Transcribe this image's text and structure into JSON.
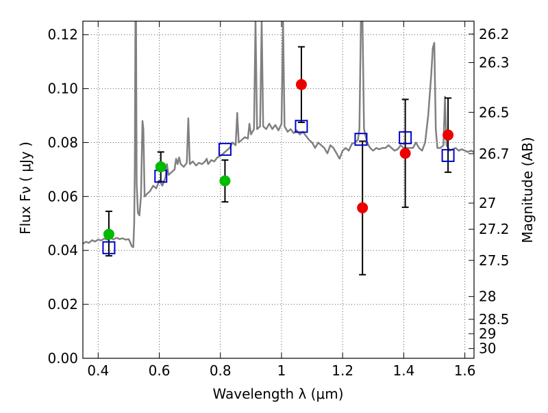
{
  "chart_data": {
    "type": "scatter",
    "title": "",
    "xlabel": "Wavelength  λ (μm)",
    "ylabel": "Flux  Fν  ( μJy )",
    "y2label": "Magnitude (AB)",
    "xlim": [
      0.35,
      1.63
    ],
    "ylim": [
      0.0,
      0.125
    ],
    "grid": true,
    "x_ticks": [
      0.4,
      0.6,
      0.8,
      1.0,
      1.2,
      1.4,
      1.6
    ],
    "x_tick_labels": [
      "0.4",
      "0.6",
      "0.8",
      "1",
      "1.2",
      "1.4",
      "1.6"
    ],
    "y_ticks": [
      0.0,
      0.02,
      0.04,
      0.06,
      0.08,
      0.1,
      0.12
    ],
    "y_tick_labels": [
      "0.00",
      "0.02",
      "0.04",
      "0.06",
      "0.08",
      "0.10",
      "0.12"
    ],
    "y2_tick_labels": [
      "26.2",
      "26.3",
      "26.5",
      "26.7",
      "27",
      "27.2",
      "27.5",
      "28",
      "28.5",
      "29",
      "30"
    ],
    "colors": {
      "model": "#808080",
      "green": "#00bb00",
      "red": "#ee0000",
      "box": "#0000cc",
      "error": "#000000"
    },
    "series": [
      {
        "marker": "line",
        "color": "#808080",
        "points": [
          [
            0.35,
            0.0425
          ],
          [
            0.36,
            0.0432
          ],
          [
            0.37,
            0.0428
          ],
          [
            0.38,
            0.0438
          ],
          [
            0.39,
            0.0433
          ],
          [
            0.4,
            0.044
          ],
          [
            0.41,
            0.0437
          ],
          [
            0.42,
            0.0444
          ],
          [
            0.43,
            0.044
          ],
          [
            0.44,
            0.0446
          ],
          [
            0.45,
            0.0441
          ],
          [
            0.46,
            0.0447
          ],
          [
            0.47,
            0.0442
          ],
          [
            0.48,
            0.0445
          ],
          [
            0.49,
            0.044
          ],
          [
            0.5,
            0.0442
          ],
          [
            0.505,
            0.043
          ],
          [
            0.51,
            0.0415
          ],
          [
            0.515,
            0.0412
          ],
          [
            0.518,
            0.05
          ],
          [
            0.52,
            0.07
          ],
          [
            0.522,
            0.125
          ],
          [
            0.524,
            0.125
          ],
          [
            0.526,
            0.065
          ],
          [
            0.53,
            0.054
          ],
          [
            0.535,
            0.053
          ],
          [
            0.54,
            0.06
          ],
          [
            0.545,
            0.088
          ],
          [
            0.548,
            0.085
          ],
          [
            0.552,
            0.06
          ],
          [
            0.56,
            0.061
          ],
          [
            0.57,
            0.062
          ],
          [
            0.58,
            0.064
          ],
          [
            0.59,
            0.063
          ],
          [
            0.6,
            0.066
          ],
          [
            0.61,
            0.064
          ],
          [
            0.62,
            0.067
          ],
          [
            0.625,
            0.072
          ],
          [
            0.63,
            0.068
          ],
          [
            0.64,
            0.069
          ],
          [
            0.65,
            0.07
          ],
          [
            0.655,
            0.074
          ],
          [
            0.66,
            0.072
          ],
          [
            0.665,
            0.0745
          ],
          [
            0.67,
            0.072
          ],
          [
            0.68,
            0.071
          ],
          [
            0.69,
            0.0725
          ],
          [
            0.695,
            0.089
          ],
          [
            0.7,
            0.072
          ],
          [
            0.71,
            0.073
          ],
          [
            0.72,
            0.0715
          ],
          [
            0.73,
            0.0725
          ],
          [
            0.74,
            0.072
          ],
          [
            0.75,
            0.073
          ],
          [
            0.755,
            0.074
          ],
          [
            0.76,
            0.072
          ],
          [
            0.77,
            0.0735
          ],
          [
            0.78,
            0.073
          ],
          [
            0.79,
            0.0745
          ],
          [
            0.8,
            0.075
          ],
          [
            0.81,
            0.076
          ],
          [
            0.82,
            0.077
          ],
          [
            0.83,
            0.078
          ],
          [
            0.84,
            0.08
          ],
          [
            0.85,
            0.079
          ],
          [
            0.855,
            0.091
          ],
          [
            0.86,
            0.08
          ],
          [
            0.87,
            0.081
          ],
          [
            0.88,
            0.082
          ],
          [
            0.89,
            0.0815
          ],
          [
            0.895,
            0.087
          ],
          [
            0.9,
            0.083
          ],
          [
            0.91,
            0.085
          ],
          [
            0.915,
            0.125
          ],
          [
            0.92,
            0.085
          ],
          [
            0.93,
            0.086
          ],
          [
            0.935,
            0.125
          ],
          [
            0.94,
            0.086
          ],
          [
            0.95,
            0.085
          ],
          [
            0.96,
            0.087
          ],
          [
            0.97,
            0.085
          ],
          [
            0.98,
            0.0865
          ],
          [
            0.99,
            0.0845
          ],
          [
            1.0,
            0.087
          ],
          [
            1.005,
            0.125
          ],
          [
            1.01,
            0.086
          ],
          [
            1.02,
            0.084
          ],
          [
            1.03,
            0.085
          ],
          [
            1.04,
            0.0835
          ],
          [
            1.05,
            0.0845
          ],
          [
            1.06,
            0.083
          ],
          [
            1.07,
            0.084
          ],
          [
            1.08,
            0.0825
          ],
          [
            1.09,
            0.081
          ],
          [
            1.1,
            0.08
          ],
          [
            1.11,
            0.078
          ],
          [
            1.12,
            0.08
          ],
          [
            1.13,
            0.079
          ],
          [
            1.14,
            0.078
          ],
          [
            1.15,
            0.076
          ],
          [
            1.16,
            0.079
          ],
          [
            1.17,
            0.078
          ],
          [
            1.18,
            0.076
          ],
          [
            1.19,
            0.074
          ],
          [
            1.2,
            0.077
          ],
          [
            1.21,
            0.078
          ],
          [
            1.22,
            0.077
          ],
          [
            1.23,
            0.0795
          ],
          [
            1.24,
            0.08
          ],
          [
            1.25,
            0.081
          ],
          [
            1.255,
            0.085
          ],
          [
            1.26,
            0.125
          ],
          [
            1.265,
            0.125
          ],
          [
            1.27,
            0.085
          ],
          [
            1.28,
            0.08
          ],
          [
            1.29,
            0.078
          ],
          [
            1.3,
            0.077
          ],
          [
            1.31,
            0.078
          ],
          [
            1.32,
            0.0775
          ],
          [
            1.33,
            0.078
          ],
          [
            1.34,
            0.078
          ],
          [
            1.35,
            0.079
          ],
          [
            1.36,
            0.078
          ],
          [
            1.37,
            0.077
          ],
          [
            1.38,
            0.0775
          ],
          [
            1.39,
            0.079
          ],
          [
            1.4,
            0.078
          ],
          [
            1.41,
            0.078
          ],
          [
            1.42,
            0.078
          ],
          [
            1.43,
            0.078
          ],
          [
            1.44,
            0.08
          ],
          [
            1.45,
            0.078
          ],
          [
            1.46,
            0.077
          ],
          [
            1.47,
            0.08
          ],
          [
            1.48,
            0.09
          ],
          [
            1.49,
            0.105
          ],
          [
            1.495,
            0.115
          ],
          [
            1.5,
            0.117
          ],
          [
            1.505,
            0.085
          ],
          [
            1.51,
            0.078
          ],
          [
            1.52,
            0.078
          ],
          [
            1.53,
            0.079
          ],
          [
            1.535,
            0.097
          ],
          [
            1.54,
            0.079
          ],
          [
            1.55,
            0.077
          ],
          [
            1.56,
            0.0775
          ],
          [
            1.57,
            0.078
          ],
          [
            1.58,
            0.077
          ],
          [
            1.59,
            0.0775
          ],
          [
            1.6,
            0.077
          ],
          [
            1.61,
            0.0765
          ],
          [
            1.62,
            0.077
          ],
          [
            1.63,
            0.0765
          ]
        ]
      },
      {
        "marker": "circle",
        "color": "#00bb00",
        "points": [
          {
            "x": 0.435,
            "y": 0.046,
            "err": [
              0.038,
              0.0545
            ]
          },
          {
            "x": 0.605,
            "y": 0.071,
            "err": [
              0.0655,
              0.0765
            ]
          },
          {
            "x": 0.815,
            "y": 0.0658,
            "err": [
              0.058,
              0.0735
            ]
          }
        ]
      },
      {
        "marker": "circle",
        "color": "#ee0000",
        "points": [
          {
            "x": 1.065,
            "y": 0.1015,
            "err": [
              0.0875,
              0.1155
            ]
          },
          {
            "x": 1.265,
            "y": 0.0558,
            "err": [
              0.031,
              0.0805
            ]
          },
          {
            "x": 1.405,
            "y": 0.076,
            "err": [
              0.056,
              0.096
            ]
          },
          {
            "x": 1.545,
            "y": 0.0828,
            "err": [
              0.069,
              0.0965
            ]
          }
        ]
      },
      {
        "marker": "square",
        "color": "#0000cc",
        "points": [
          {
            "x": 0.435,
            "y": 0.041
          },
          {
            "x": 0.605,
            "y": 0.0675
          },
          {
            "x": 0.815,
            "y": 0.0775
          },
          {
            "x": 1.065,
            "y": 0.086
          },
          {
            "x": 1.26,
            "y": 0.0812
          },
          {
            "x": 1.405,
            "y": 0.0818
          },
          {
            "x": 1.545,
            "y": 0.0752
          }
        ]
      }
    ]
  }
}
